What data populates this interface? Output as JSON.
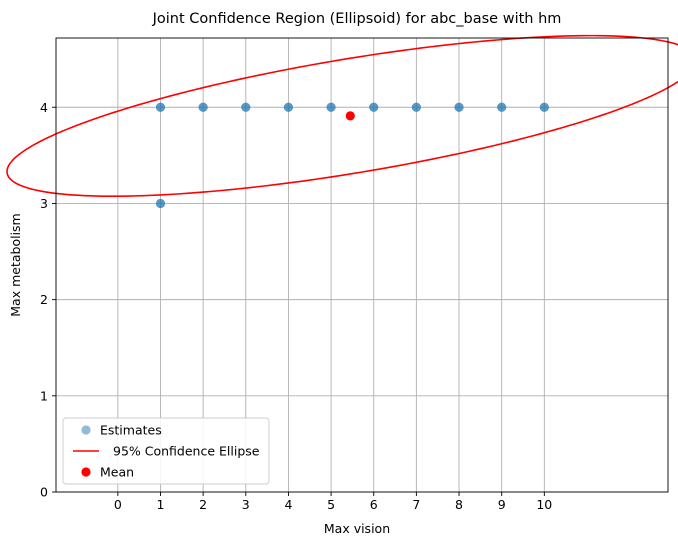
{
  "chart_data": {
    "type": "scatter",
    "title": "Joint Confidence Region (Ellipsoid) for abc_base with hm",
    "xlabel": "Max vision",
    "ylabel": "Max metabolism",
    "xlim": [
      -1.45,
      12.9
    ],
    "ylim": [
      0,
      4.72
    ],
    "xticks": [
      0,
      1,
      2,
      3,
      4,
      5,
      6,
      7,
      8,
      9,
      10
    ],
    "yticks": [
      0,
      1,
      2,
      3,
      4
    ],
    "grid": true,
    "legend_position": "lower-left",
    "series": [
      {
        "name": "Estimates",
        "kind": "scatter",
        "color": "#1f77b4",
        "points": [
          [
            1,
            3
          ],
          [
            1,
            4
          ],
          [
            2,
            4
          ],
          [
            3,
            4
          ],
          [
            4,
            4
          ],
          [
            5,
            4
          ],
          [
            6,
            4
          ],
          [
            7,
            4
          ],
          [
            8,
            4
          ],
          [
            9,
            4
          ],
          [
            10,
            4
          ]
        ]
      },
      {
        "name": "95% Confidence Ellipse",
        "kind": "ellipse",
        "color": "#ff0000",
        "center": [
          5.48,
          3.91
        ],
        "semi_major": 8.1,
        "semi_minor": 0.6,
        "angle_deg": 4.12
      },
      {
        "name": "Mean",
        "kind": "scatter",
        "color": "#ff0000",
        "points": [
          [
            5.45,
            3.91
          ]
        ]
      }
    ]
  }
}
